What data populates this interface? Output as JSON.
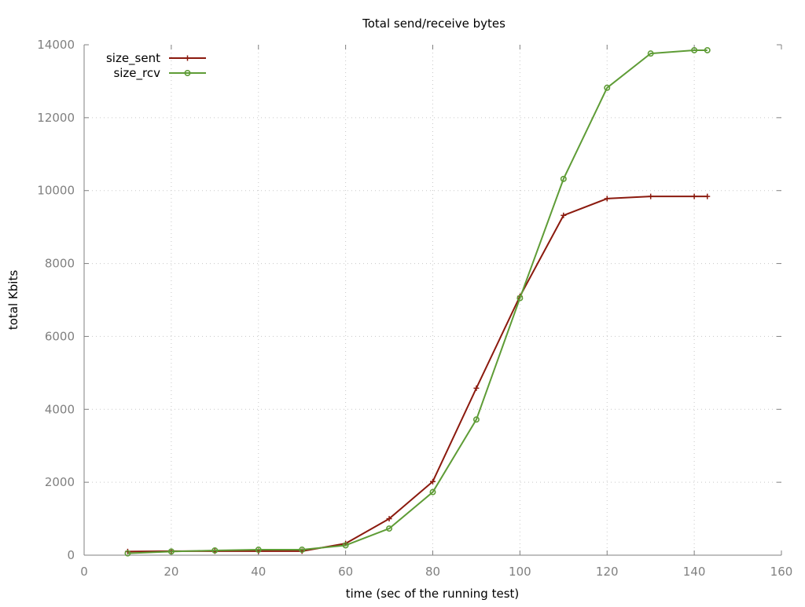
{
  "chart_data": {
    "type": "line",
    "title": "Total send/receive bytes",
    "xlabel": "time (sec of the running test)",
    "ylabel": "total Kbits",
    "xlim": [
      0,
      160
    ],
    "ylim": [
      0,
      14000
    ],
    "xticks": [
      0,
      20,
      40,
      60,
      80,
      100,
      120,
      140,
      160
    ],
    "yticks": [
      0,
      2000,
      4000,
      6000,
      8000,
      10000,
      12000,
      14000
    ],
    "grid": true,
    "legend_position": "top-left",
    "x": [
      10,
      20,
      30,
      40,
      50,
      60,
      70,
      80,
      90,
      100,
      110,
      120,
      130,
      140,
      143
    ],
    "series": [
      {
        "name": "size_sent",
        "color": "#8b1a0e",
        "marker": "plus",
        "values": [
          100,
          110,
          110,
          110,
          110,
          320,
          1000,
          2020,
          4580,
          7100,
          9320,
          9780,
          9840,
          9840,
          9840
        ]
      },
      {
        "name": "size_rcv",
        "color": "#5e9c36",
        "marker": "circle",
        "values": [
          50,
          100,
          130,
          150,
          150,
          270,
          730,
          1730,
          3720,
          7050,
          10320,
          12820,
          13760,
          13850,
          13850
        ]
      }
    ]
  }
}
